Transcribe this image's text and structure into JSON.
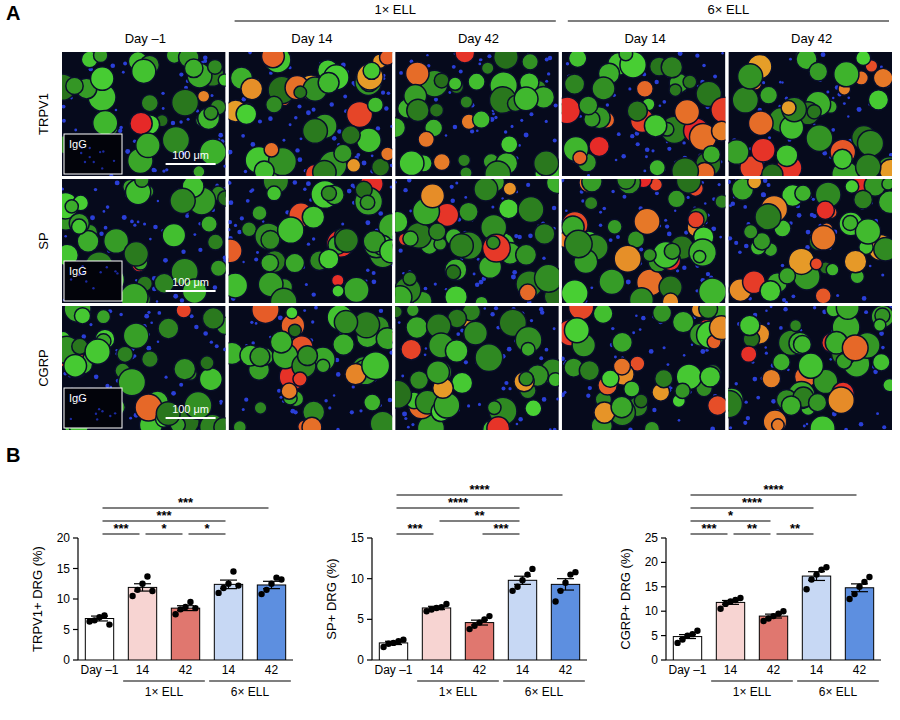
{
  "panel_a": {
    "label": "A",
    "columns": [
      "Day –1",
      "Day 14",
      "Day 42",
      "Day 14",
      "Day 42"
    ],
    "groups": [
      {
        "label": "1× ELL",
        "from": 1,
        "to": 2
      },
      {
        "label": "6× ELL",
        "from": 3,
        "to": 4
      }
    ],
    "rows": [
      "TRPV1",
      "SP",
      "CGRP"
    ],
    "inset": "IgG",
    "scale_bar": "100 μm"
  },
  "panel_b_label": "B",
  "chart_data": [
    {
      "type": "bar",
      "y_label": "TRPV1+ DRG (%)",
      "categories": [
        "Day –1",
        "14",
        "42",
        "14",
        "42"
      ],
      "groups": [
        {
          "label": "1× ELL",
          "from": 1,
          "to": 2
        },
        {
          "label": "6× ELL",
          "from": 3,
          "to": 4
        }
      ],
      "values": [
        6.8,
        11.9,
        8.5,
        12.4,
        12.3
      ],
      "errors": [
        0.4,
        0.6,
        0.4,
        0.7,
        0.6
      ],
      "points": [
        [
          6.3,
          6.5,
          7.0,
          7.3,
          5.8
        ],
        [
          10.5,
          11.5,
          12.5,
          13.7,
          11.3
        ],
        [
          7.5,
          8.3,
          8.7,
          9.5,
          8.5
        ],
        [
          11.0,
          11.8,
          12.5,
          14.5,
          12.2
        ],
        [
          10.8,
          11.5,
          12.5,
          13.5,
          13.2
        ]
      ],
      "colors": [
        "#ffffff",
        "#f7d4d2",
        "#e0776f",
        "#c7d8f4",
        "#5d8fe0"
      ],
      "ylim": [
        0,
        20
      ],
      "yticks": [
        0,
        5,
        10,
        15,
        20
      ],
      "significance": [
        {
          "from": 0,
          "to": 4,
          "label": "***"
        },
        {
          "from": 0,
          "to": 3,
          "label": "***"
        },
        {
          "from": 0,
          "to": 1,
          "label": "***"
        },
        {
          "from": 1,
          "to": 2,
          "label": "*"
        },
        {
          "from": 2,
          "to": 3,
          "label": "*"
        }
      ]
    },
    {
      "type": "bar",
      "y_label": "SP+ DRG (%)",
      "categories": [
        "Day –1",
        "14",
        "42",
        "14",
        "42"
      ],
      "groups": [
        {
          "label": "1× ELL",
          "from": 1,
          "to": 2
        },
        {
          "label": "6× ELL",
          "from": 3,
          "to": 4
        }
      ],
      "values": [
        2.1,
        6.4,
        4.6,
        9.8,
        9.3
      ],
      "errors": [
        0.2,
        0.2,
        0.3,
        0.5,
        0.7
      ],
      "points": [
        [
          1.6,
          2.0,
          2.1,
          2.3,
          2.5
        ],
        [
          6.0,
          6.2,
          6.4,
          6.5,
          6.9
        ],
        [
          3.8,
          4.2,
          4.6,
          5.0,
          5.4
        ],
        [
          8.5,
          9.0,
          9.8,
          10.5,
          11.2
        ],
        [
          7.2,
          8.5,
          9.5,
          10.5,
          10.8
        ]
      ],
      "colors": [
        "#ffffff",
        "#f7d4d2",
        "#e0776f",
        "#c7d8f4",
        "#5d8fe0"
      ],
      "ylim": [
        0,
        15
      ],
      "yticks": [
        0,
        5,
        10,
        15
      ],
      "significance": [
        {
          "from": 0,
          "to": 4,
          "label": "****"
        },
        {
          "from": 0,
          "to": 3,
          "label": "****"
        },
        {
          "from": 1,
          "to": 3,
          "label": "**"
        },
        {
          "from": 0,
          "to": 1,
          "label": "***"
        },
        {
          "from": 2,
          "to": 3,
          "label": "***"
        }
      ]
    },
    {
      "type": "bar",
      "y_label": "CGRP+ DRG (%)",
      "categories": [
        "Day –1",
        "14",
        "42",
        "14",
        "42"
      ],
      "groups": [
        {
          "label": "1× ELL",
          "from": 1,
          "to": 2
        },
        {
          "label": "6× ELL",
          "from": 3,
          "to": 4
        }
      ],
      "values": [
        4.8,
        11.8,
        9.0,
        17.2,
        14.8
      ],
      "errors": [
        0.4,
        0.4,
        0.4,
        0.9,
        0.8
      ],
      "points": [
        [
          3.5,
          4.2,
          5.0,
          5.3,
          6.0
        ],
        [
          10.5,
          11.5,
          12.0,
          12.3,
          12.7
        ],
        [
          8.0,
          8.5,
          9.0,
          9.5,
          10.0
        ],
        [
          14.5,
          16.5,
          17.5,
          18.5,
          19.0
        ],
        [
          12.5,
          13.5,
          15.0,
          16.0,
          17.0
        ]
      ],
      "colors": [
        "#ffffff",
        "#f7d4d2",
        "#e0776f",
        "#c7d8f4",
        "#5d8fe0"
      ],
      "ylim": [
        0,
        25
      ],
      "yticks": [
        0,
        5,
        10,
        15,
        20,
        25
      ],
      "significance": [
        {
          "from": 0,
          "to": 4,
          "label": "****"
        },
        {
          "from": 0,
          "to": 3,
          "label": "****"
        },
        {
          "from": 0,
          "to": 2,
          "label": "*"
        },
        {
          "from": 0,
          "to": 1,
          "label": "***"
        },
        {
          "from": 1,
          "to": 2,
          "label": "**"
        },
        {
          "from": 2,
          "to": 3,
          "label": "**"
        }
      ]
    }
  ]
}
